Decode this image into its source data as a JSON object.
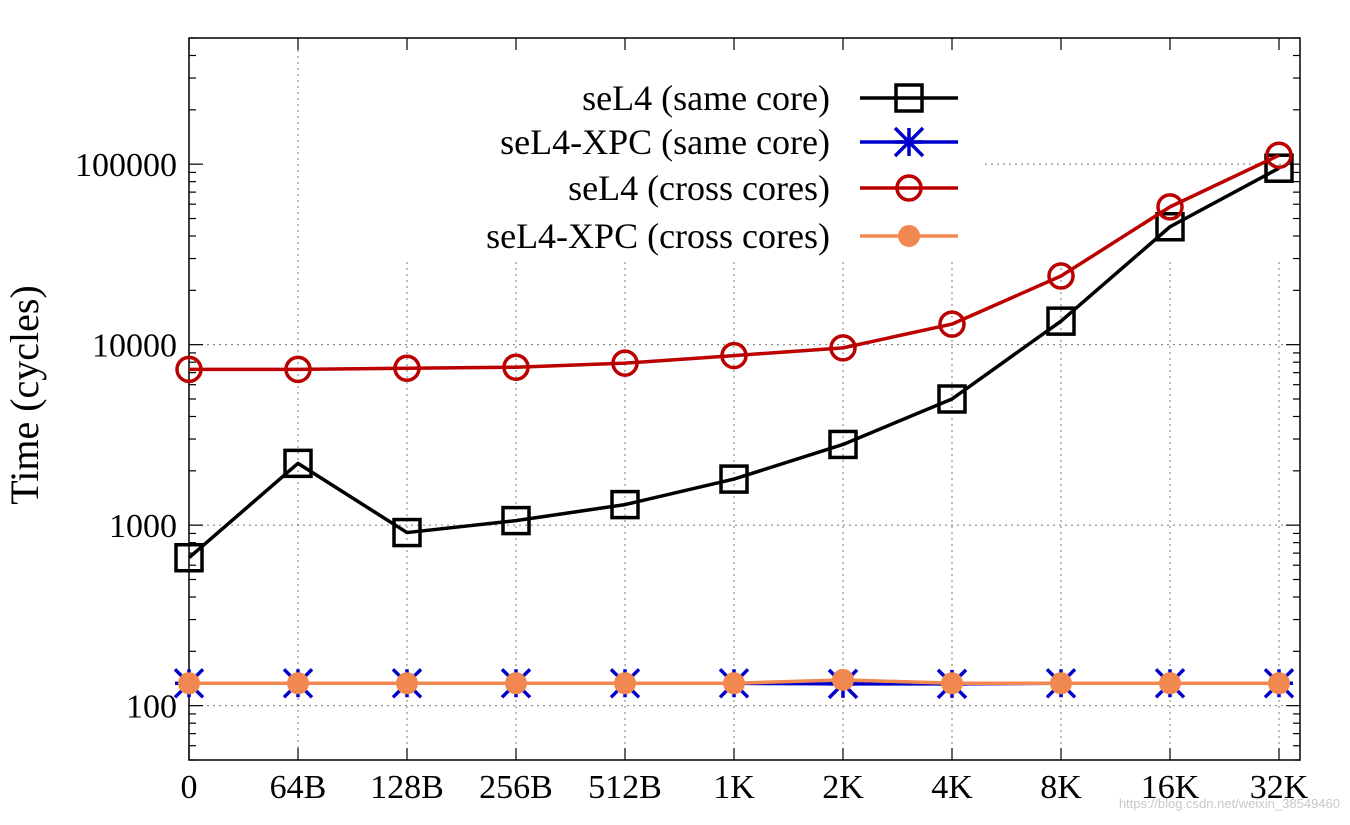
{
  "chart_data": {
    "type": "line",
    "title": "",
    "xlabel": "",
    "ylabel": "Time (cycles)",
    "yscale": "log",
    "ylim": [
      50,
      500000
    ],
    "yticks": [
      {
        "value": 100,
        "label": "100"
      },
      {
        "value": 1000,
        "label": "1000"
      },
      {
        "value": 10000,
        "label": "10000"
      },
      {
        "value": 100000,
        "label": "100000"
      }
    ],
    "categories": [
      "0",
      "64B",
      "128B",
      "256B",
      "512B",
      "1K",
      "2K",
      "4K",
      "8K",
      "16K",
      "32K"
    ],
    "grid": true,
    "legend_position": "top-right",
    "series": [
      {
        "name": "seL4 (same core)",
        "color": "#000000",
        "marker": "open-square",
        "values": [
          660,
          2200,
          910,
          1060,
          1300,
          1800,
          2800,
          5000,
          13500,
          45000,
          95000
        ]
      },
      {
        "name": "seL4-XPC (same core)",
        "color": "#0000cc",
        "marker": "asterisk",
        "values": [
          133,
          133,
          133,
          133,
          133,
          133,
          132,
          132,
          133,
          133,
          133
        ]
      },
      {
        "name": "seL4 (cross cores)",
        "color": "#bb0000",
        "marker": "open-circle",
        "values": [
          7300,
          7300,
          7400,
          7500,
          7900,
          8700,
          9600,
          13000,
          24000,
          58000,
          112000
        ]
      },
      {
        "name": "seL4-XPC (cross cores)",
        "color": "#f08850",
        "marker": "filled-circle",
        "values": [
          133,
          133,
          133,
          133,
          133,
          133,
          139,
          133,
          133,
          133,
          133
        ]
      }
    ]
  },
  "watermark": "https://blog.csdn.net/weixin_38549460"
}
